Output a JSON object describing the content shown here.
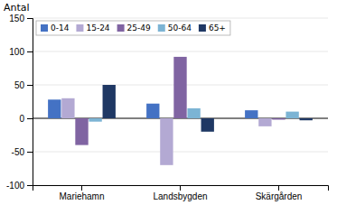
{
  "chart_data": {
    "type": "bar",
    "categories": [
      "Mariehamn",
      "Landsbygden",
      "Skärgården"
    ],
    "series": [
      {
        "name": "0-14",
        "color": "#4472c4",
        "values": [
          28,
          22,
          12
        ]
      },
      {
        "name": "15-24",
        "color": "#b3a9d3",
        "values": [
          30,
          -70,
          -12
        ]
      },
      {
        "name": "25-49",
        "color": "#8064a2",
        "values": [
          -40,
          92,
          -2
        ]
      },
      {
        "name": "50-64",
        "color": "#7cb4d4",
        "values": [
          -5,
          15,
          10
        ]
      },
      {
        "name": "65+",
        "color": "#1f3864",
        "values": [
          50,
          -20,
          -3
        ]
      }
    ],
    "ylabel": "Antal",
    "ylim": [
      -100,
      150
    ],
    "yticks": [
      -100,
      -50,
      0,
      50,
      100,
      150
    ],
    "grid": true,
    "legend": "upper left"
  }
}
